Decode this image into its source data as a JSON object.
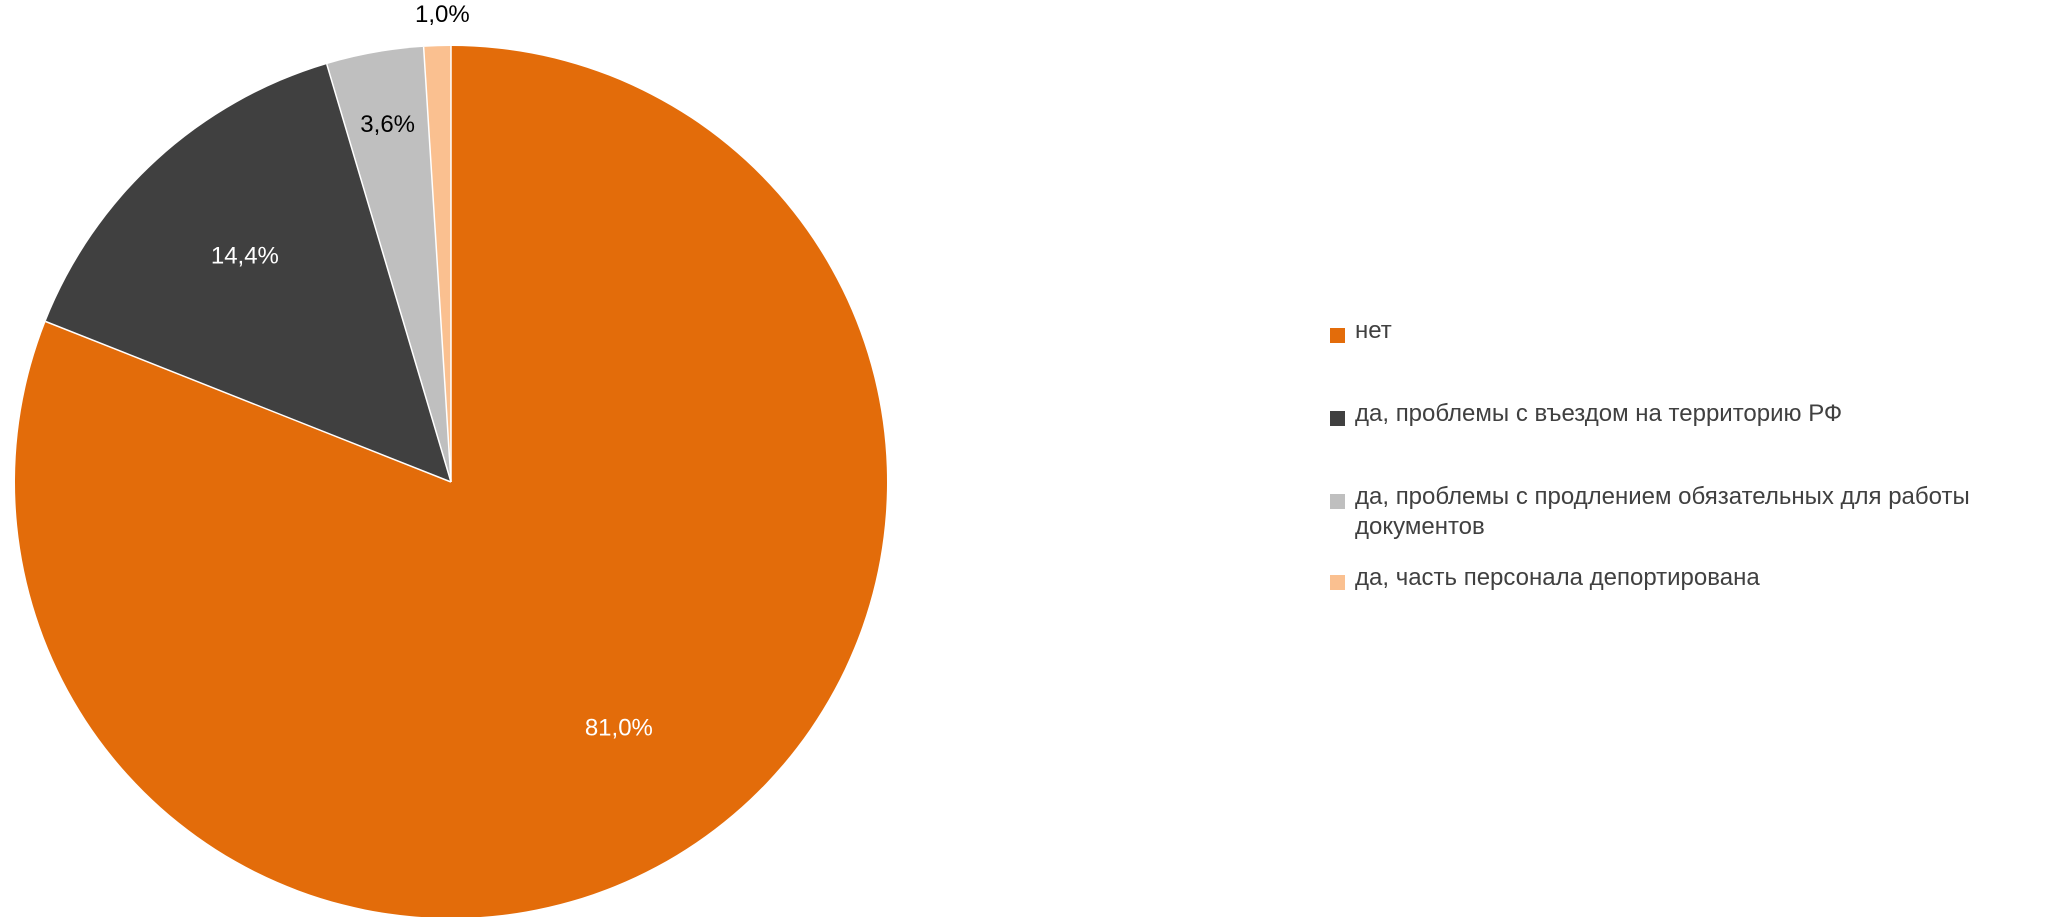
{
  "chart_data": {
    "type": "pie",
    "title": "",
    "start_angle": "12 o'clock",
    "direction": "clockwise",
    "legend_position": "right",
    "slices": [
      {
        "label": "нет",
        "value": 81.0,
        "display": "81,0%",
        "color": "#E36C0A",
        "label_color": "#ffffff"
      },
      {
        "label": "да, проблемы с въездом на территорию РФ",
        "value": 14.4,
        "display": "14,4%",
        "color": "#404040",
        "label_color": "#ffffff"
      },
      {
        "label": "да, проблемы с продлением обязательных для работы документов",
        "value": 3.6,
        "display": "3,6%",
        "color": "#BFBFBF",
        "label_color": "#000000"
      },
      {
        "label": "да, часть персонала депортирована",
        "value": 1.0,
        "display": "1,0%",
        "color": "#FAC090",
        "label_color": "#000000"
      }
    ]
  },
  "legend": {
    "items": [
      {
        "label": "нет",
        "color": "#E36C0A"
      },
      {
        "label": "да, проблемы с въездом на территорию РФ",
        "color": "#404040"
      },
      {
        "label": "да, проблемы с продлением обязательных для работы документов",
        "color": "#BFBFBF"
      },
      {
        "label": "да, часть персонала депортирована",
        "color": "#FAC090"
      }
    ]
  }
}
